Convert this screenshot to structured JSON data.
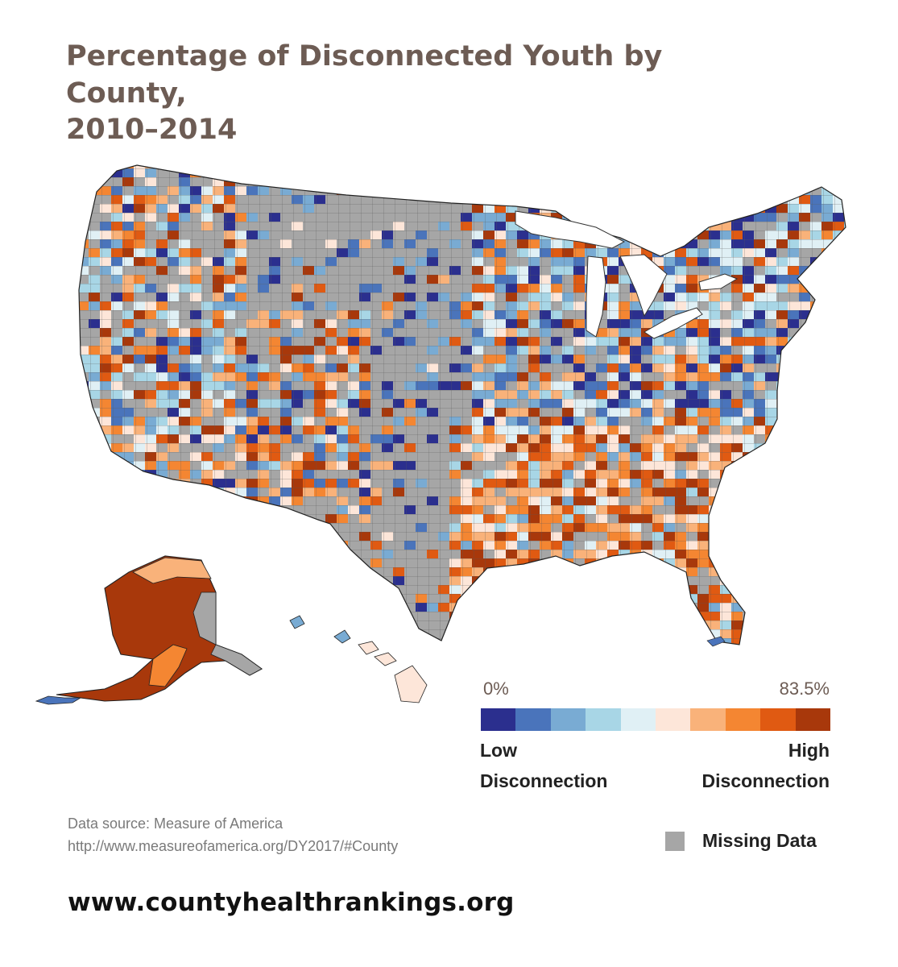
{
  "title": {
    "line1": "Percentage of Disconnected Youth by County,",
    "line2": "2010–2014"
  },
  "legend": {
    "min_label": "0%",
    "max_label": "83.5%",
    "colors": [
      "#2b2f8e",
      "#4a74bb",
      "#79abd3",
      "#a8d6e6",
      "#e0f0f5",
      "#fde6d9",
      "#f9b27a",
      "#f48632",
      "#e05a12",
      "#a8380b"
    ],
    "low_line1": "Low",
    "low_line2": "Disconnection",
    "high_line1": "High",
    "high_line2": "Disconnection",
    "missing_label": "Missing Data",
    "missing_color": "#a6a6a6"
  },
  "source": {
    "line1": "Data source: Measure of America",
    "line2": "http://www.measureofamerica.org/DY2017/#County"
  },
  "website": "www.countyhealthrankings.org"
}
